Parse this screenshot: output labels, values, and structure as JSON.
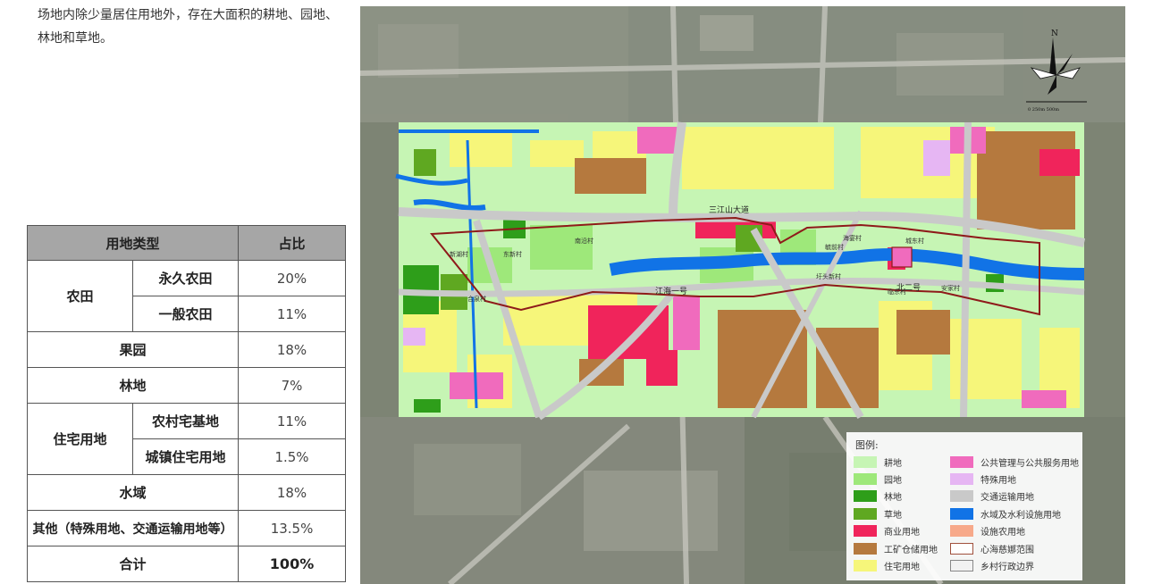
{
  "intro": {
    "line1": "场地内除少量居住用地外，存在大面积的耕地、园地、",
    "line2": "林地和草地。"
  },
  "table": {
    "headers": [
      "用地类型",
      "占比"
    ],
    "rows": {
      "farmland": {
        "category": "农田",
        "subs": [
          {
            "name": "永久农田",
            "pct": "20%"
          },
          {
            "name": "一般农田",
            "pct": "11%"
          }
        ]
      },
      "orchard": {
        "category": "果园",
        "pct": "18%"
      },
      "forest": {
        "category": "林地",
        "pct": "7%"
      },
      "residential": {
        "category": "住宅用地",
        "subs": [
          {
            "name": "农村宅基地",
            "pct": "11%"
          },
          {
            "name": "城镇住宅用地",
            "pct": "1.5%"
          }
        ]
      },
      "water": {
        "category": "水域",
        "pct": "18%"
      },
      "other": {
        "category": "其他（特殊用地、交通运输用地等）",
        "pct": "13.5%"
      },
      "total": {
        "category": "合计",
        "pct": "100%"
      }
    }
  },
  "map": {
    "road_labels": [
      "三江山大道",
      "江海一号",
      "北二号"
    ],
    "village_labels": [
      "新湖村",
      "南沿村",
      "东新村",
      "合泉村",
      "毓前村",
      "圩头新村",
      "海宴村",
      "临东村",
      "安家村",
      "城东村"
    ],
    "north_label": "N",
    "scale_label": "0   250m   500m",
    "legend": {
      "title": "图例:",
      "items": [
        {
          "label": "耕地",
          "color": "#c6f5b4",
          "border": "none"
        },
        {
          "label": "园地",
          "color": "#9ee87a",
          "border": "none"
        },
        {
          "label": "林地",
          "color": "#2e9e1a",
          "border": "none"
        },
        {
          "label": "草地",
          "color": "#5fa821",
          "border": "none"
        },
        {
          "label": "商业用地",
          "color": "#f0245b",
          "border": "none"
        },
        {
          "label": "工矿仓储用地",
          "color": "#b5793e",
          "border": "none"
        },
        {
          "label": "住宅用地",
          "color": "#f6f67a",
          "border": "none"
        },
        {
          "label": "公共管理与公共服务用地",
          "color": "#f06bbd",
          "border": "none"
        },
        {
          "label": "特殊用地",
          "color": "#e6b6f3",
          "border": "none"
        },
        {
          "label": "交通运输用地",
          "color": "#c9c9c9",
          "border": "none"
        },
        {
          "label": "水域及水利设施用地",
          "color": "#1173e6",
          "border": "none"
        },
        {
          "label": "设施农用地",
          "color": "#f7a98a",
          "border": "none"
        },
        {
          "label": "心海慈娜范围",
          "color": "#ffffff",
          "border": "#a0503c"
        },
        {
          "label": "乡村行政边界",
          "color": "#f2f2f2",
          "border": "#888888"
        }
      ]
    }
  }
}
